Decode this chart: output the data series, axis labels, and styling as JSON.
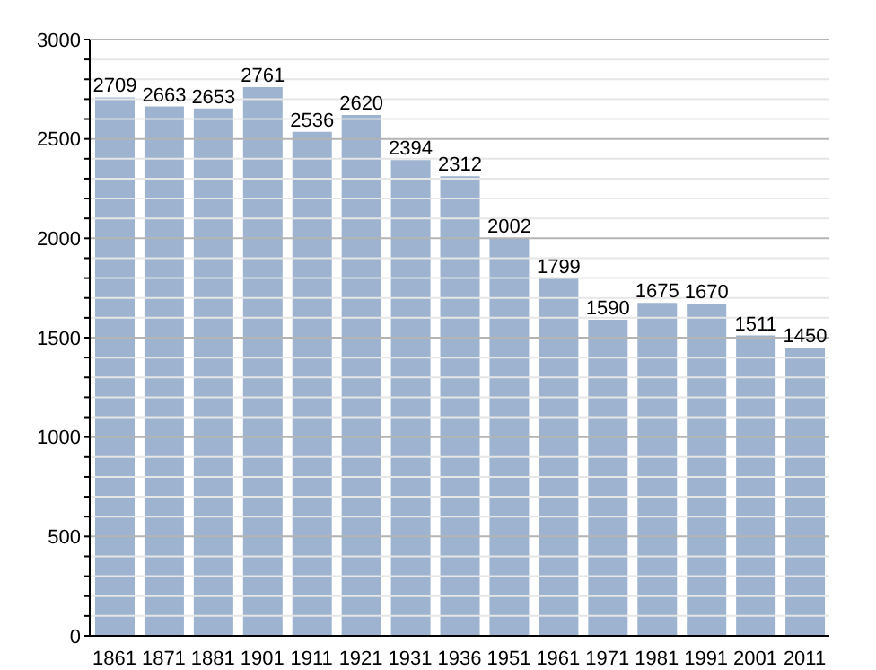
{
  "chart_data": {
    "type": "bar",
    "categories": [
      "1861",
      "1871",
      "1881",
      "1901",
      "1911",
      "1921",
      "1931",
      "1936",
      "1951",
      "1961",
      "1971",
      "1981",
      "1991",
      "2001",
      "2011"
    ],
    "values": [
      2709,
      2663,
      2653,
      2761,
      2536,
      2620,
      2394,
      2312,
      2002,
      1799,
      1590,
      1675,
      1670,
      1511,
      1450
    ],
    "color": "#9db3cf",
    "data_labels": true,
    "grid": "y",
    "ylim": [
      0,
      3000
    ],
    "yticks": [
      0,
      {
        "value": 100,
        "label": null
      },
      {
        "value": 200,
        "label": null
      },
      {
        "value": 300,
        "label": null
      },
      {
        "value": 400,
        "label": null
      },
      500,
      {
        "value": 600,
        "label": null
      },
      {
        "value": 700,
        "label": null
      },
      {
        "value": 800,
        "label": null
      },
      {
        "value": 900,
        "label": null
      },
      1000,
      {
        "value": 1100,
        "label": null
      },
      {
        "value": 1200,
        "label": null
      },
      {
        "value": 1300,
        "label": null
      },
      {
        "value": 1400,
        "label": null
      },
      1500,
      {
        "value": 1600,
        "label": null
      },
      {
        "value": 1700,
        "label": null
      },
      {
        "value": 1800,
        "label": null
      },
      {
        "value": 1900,
        "label": null
      },
      2000,
      {
        "value": 2100,
        "label": null
      },
      {
        "value": 2200,
        "label": null
      },
      {
        "value": 2300,
        "label": null
      },
      {
        "value": 2400,
        "label": null
      },
      2500,
      {
        "value": 2600,
        "label": null
      },
      {
        "value": 2700,
        "label": null
      },
      {
        "value": 2800,
        "label": null
      },
      {
        "value": 2900,
        "label": null
      },
      3000
    ]
  }
}
